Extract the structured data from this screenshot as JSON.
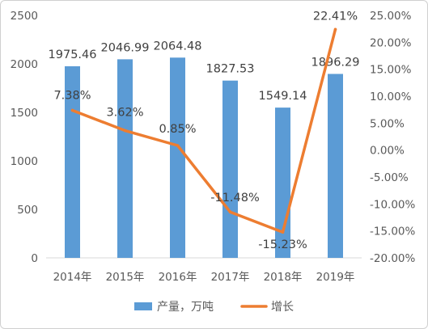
{
  "chart_data": {
    "type": "bar+line",
    "categories": [
      "2014年",
      "2015年",
      "2016年",
      "2017年",
      "2018年",
      "2019年"
    ],
    "series": [
      {
        "name": "产量，万吨",
        "type": "bar",
        "axis": "left",
        "color": "#5b9bd5",
        "values": [
          1975.46,
          2046.99,
          2064.48,
          1827.53,
          1549.14,
          1896.29
        ],
        "labels": [
          "1975.46",
          "2046.99",
          "2064.48",
          "1827.53",
          "1549.14",
          "1896.29"
        ]
      },
      {
        "name": "增长",
        "type": "line",
        "axis": "right",
        "color": "#ed7d31",
        "values": [
          7.38,
          3.62,
          0.85,
          -11.48,
          -15.23,
          22.41
        ],
        "labels": [
          "7.38%",
          "3.62%",
          "0.85%",
          "-11.48%",
          "-15.23%",
          "22.41%"
        ]
      }
    ],
    "left_axis": {
      "ylim": [
        0,
        2500
      ],
      "ticks": [
        0,
        500,
        1000,
        1500,
        2000,
        2500
      ],
      "tick_labels": [
        "0",
        "500",
        "1000",
        "1500",
        "2000",
        "2500"
      ]
    },
    "right_axis": {
      "ylim": [
        -20,
        25
      ],
      "ticks": [
        -20,
        -15,
        -10,
        -5,
        0,
        5,
        10,
        15,
        20,
        25
      ],
      "tick_labels": [
        "-20.00%",
        "-15.00%",
        "-10.00%",
        "-5.00%",
        "0.00%",
        "5.00%",
        "10.00%",
        "15.00%",
        "20.00%",
        "25.00%"
      ]
    },
    "grid": false,
    "legend": "bottom"
  }
}
